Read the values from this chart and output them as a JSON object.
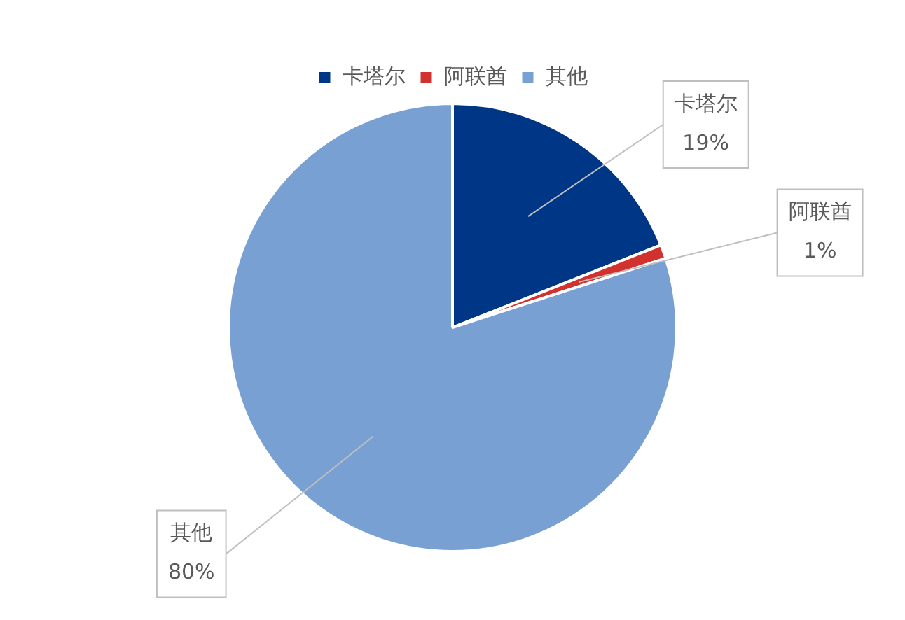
{
  "chart_data": {
    "type": "pie",
    "categories": [
      "卡塔尔",
      "阿联酋",
      "其他"
    ],
    "values": [
      19,
      1,
      80
    ],
    "value_labels": [
      "19%",
      "1%",
      "80%"
    ],
    "colors": [
      "#003686",
      "#d2322d",
      "#78a0d2"
    ],
    "legend": "top"
  }
}
